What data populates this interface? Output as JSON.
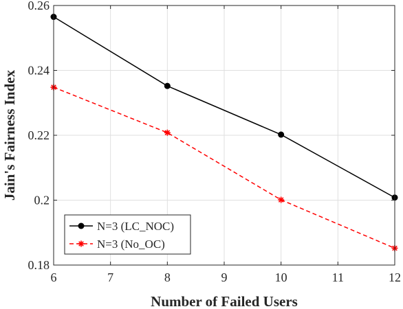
{
  "chart_data": {
    "type": "line",
    "xlabel": "Number of Failed Users",
    "ylabel": "Jain's Fairness Index",
    "xlim": [
      6,
      12
    ],
    "ylim": [
      0.18,
      0.26
    ],
    "xticks": [
      6,
      7,
      8,
      9,
      10,
      11,
      12
    ],
    "yticks": [
      0.18,
      0.2,
      0.22,
      0.24,
      0.26
    ],
    "xtick_labels": [
      "6",
      "7",
      "8",
      "9",
      "10",
      "11",
      "12"
    ],
    "ytick_labels": [
      "0.18",
      "0.2",
      "0.22",
      "0.24",
      "0.26"
    ],
    "grid": true,
    "legend_position": "bottom-left",
    "series": [
      {
        "name": "N=3 (LC_NOC)",
        "x": [
          6,
          8,
          10,
          12
        ],
        "y": [
          0.2565,
          0.2352,
          0.2202,
          0.2008
        ],
        "color": "#000000",
        "line_style": "solid",
        "marker": "circle"
      },
      {
        "name": "N=3 (No_OC)",
        "x": [
          6,
          8,
          10,
          12
        ],
        "y": [
          0.2348,
          0.2208,
          0.2001,
          0.1852
        ],
        "color": "#ff0000",
        "line_style": "dashed",
        "marker": "asterisk"
      }
    ]
  }
}
